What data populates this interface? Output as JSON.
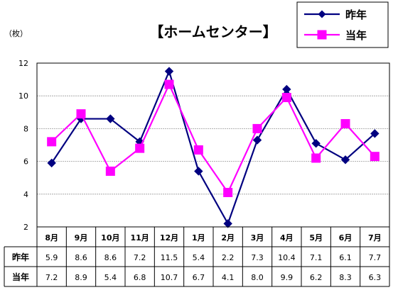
{
  "chart_data": {
    "type": "line",
    "title": "【ホームセンター】",
    "unit_label": "（枚）",
    "xlabel": "",
    "ylabel": "",
    "categories": [
      "8月",
      "9月",
      "10月",
      "11月",
      "12月",
      "1月",
      "2月",
      "3月",
      "4月",
      "5月",
      "6月",
      "7月"
    ],
    "ylim": [
      2,
      12
    ],
    "yticks": [
      2,
      4,
      6,
      8,
      10,
      12
    ],
    "grid": true,
    "legend_position": "top-right",
    "series": [
      {
        "name": "昨年",
        "color": "#000080",
        "marker": "diamond",
        "values": [
          5.9,
          8.6,
          8.6,
          7.2,
          11.5,
          5.4,
          2.2,
          7.3,
          10.4,
          7.1,
          6.1,
          7.7
        ],
        "labels": [
          "5.9",
          "8.6",
          "8.6",
          "7.2",
          "11.5",
          "5.4",
          "2.2",
          "7.3",
          "10.4",
          "7.1",
          "6.1",
          "7.7"
        ]
      },
      {
        "name": "当年",
        "color": "#FF00FF",
        "marker": "square",
        "values": [
          7.2,
          8.9,
          5.4,
          6.8,
          10.7,
          6.7,
          4.1,
          8.0,
          9.9,
          6.2,
          8.3,
          6.3
        ],
        "labels": [
          "7.2",
          "8.9",
          "5.4",
          "6.8",
          "10.7",
          "6.7",
          "4.1",
          "8.0",
          "9.9",
          "6.2",
          "8.3",
          "6.3"
        ]
      }
    ]
  }
}
